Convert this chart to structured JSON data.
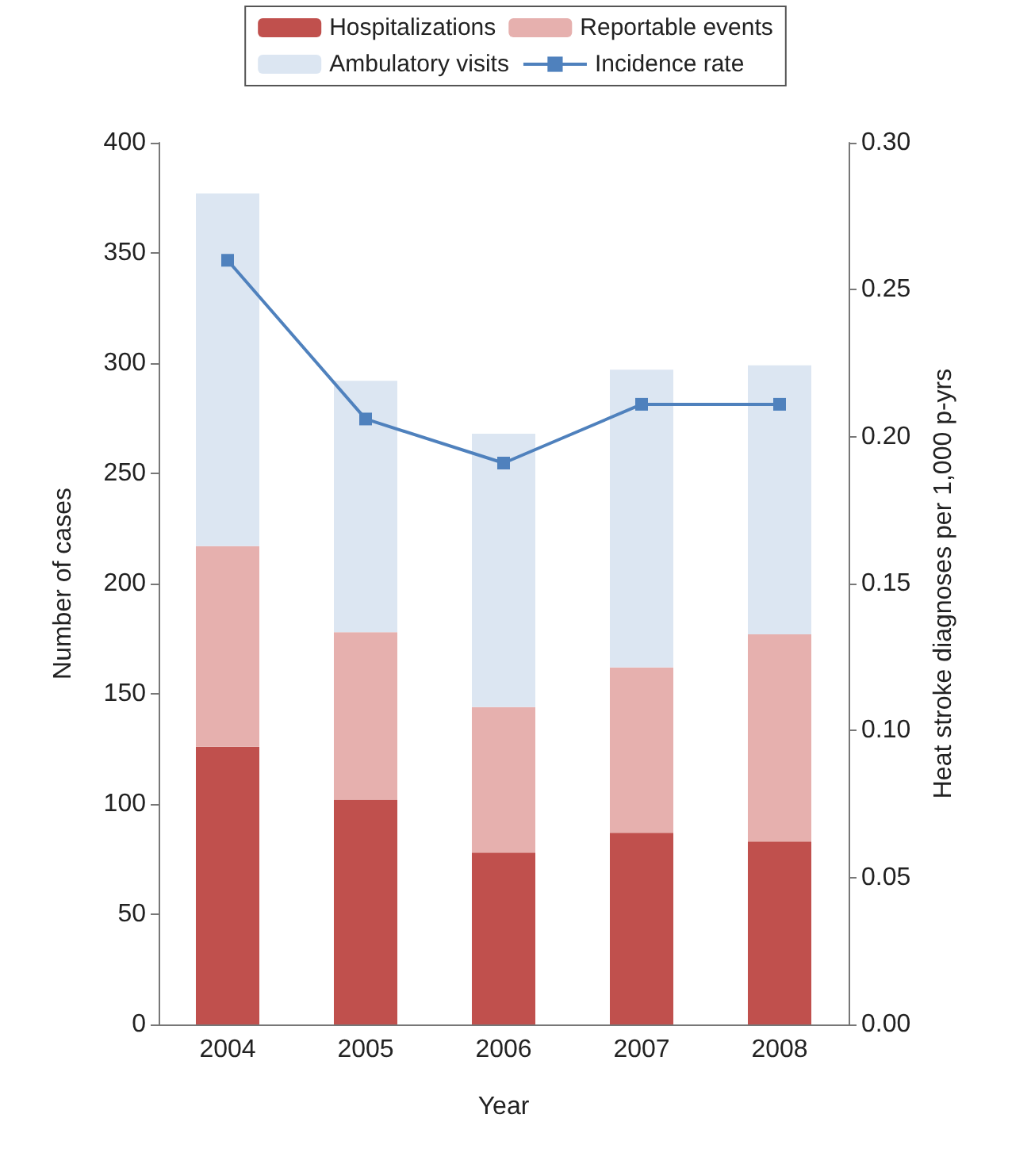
{
  "chart_data": {
    "type": "bar",
    "stacked": true,
    "categories": [
      "2004",
      "2005",
      "2006",
      "2007",
      "2008"
    ],
    "xlabel": "Year",
    "ylabel": "Number of cases",
    "y2label": "Heat stroke diagnoses per 1,000 p-yrs",
    "ylim": [
      0,
      400
    ],
    "yticks": [
      0,
      50,
      100,
      150,
      200,
      250,
      300,
      350,
      400
    ],
    "y2lim": [
      0,
      0.3
    ],
    "y2ticks": [
      {
        "value": 0,
        "label": "0.00"
      },
      {
        "value": 0.05,
        "label": "0.05"
      },
      {
        "value": 0.1,
        "label": "0.10"
      },
      {
        "value": 0.15,
        "label": "0.15"
      },
      {
        "value": 0.2,
        "label": "0.20"
      },
      {
        "value": 0.25,
        "label": "0.25"
      },
      {
        "value": 0.3,
        "label": "0.30"
      }
    ],
    "series": [
      {
        "name": "Hospitalizations",
        "color": "#c0504d",
        "values": [
          126,
          102,
          78,
          87,
          83
        ]
      },
      {
        "name": "Reportable events",
        "color": "#e6b0ae",
        "values": [
          91,
          76,
          66,
          75,
          94
        ]
      },
      {
        "name": "Ambulatory visits",
        "color": "#dce6f2",
        "values": [
          160,
          114,
          124,
          135,
          122
        ]
      },
      {
        "name": "Incidence rate",
        "type": "line",
        "axis": "y2",
        "color": "#4f81bd",
        "marker": "square",
        "values": [
          0.26,
          0.206,
          0.191,
          0.211,
          0.211
        ]
      }
    ],
    "grid": false,
    "legend": "top"
  }
}
